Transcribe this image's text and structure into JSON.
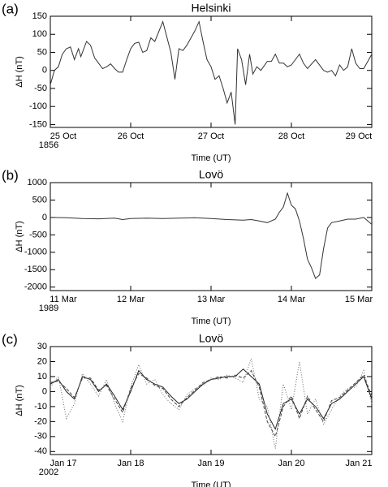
{
  "chart_data": [
    {
      "type": "line",
      "panel_label": "(a)",
      "title": "Helsinki",
      "x_label": "Time (UT)",
      "y_label": "ΔH (nT)",
      "year": "1856",
      "xlim": [
        0,
        4
      ],
      "xticks": [
        {
          "value": 0,
          "label": "25 Oct"
        },
        {
          "value": 1,
          "label": "26 Oct"
        },
        {
          "value": 2,
          "label": "27 Oct"
        },
        {
          "value": 3,
          "label": "28 Oct"
        },
        {
          "value": 4,
          "label": "29 Oct"
        }
      ],
      "ylim": [
        -158,
        150
      ],
      "yticks": [
        -150,
        -100,
        -50,
        0,
        50,
        100,
        150
      ],
      "x": [
        0,
        0.05,
        0.1,
        0.15,
        0.2,
        0.25,
        0.3,
        0.35,
        0.38,
        0.45,
        0.5,
        0.55,
        0.6,
        0.65,
        0.7,
        0.75,
        0.8,
        0.85,
        0.9,
        0.95,
        1.0,
        1.05,
        1.1,
        1.15,
        1.2,
        1.25,
        1.3,
        1.4,
        1.5,
        1.55,
        1.6,
        1.65,
        1.7,
        1.8,
        1.85,
        1.9,
        1.95,
        2.0,
        2.05,
        2.1,
        2.15,
        2.2,
        2.25,
        2.3,
        2.33,
        2.38,
        2.43,
        2.48,
        2.52,
        2.57,
        2.62,
        2.7,
        2.75,
        2.8,
        2.85,
        2.9,
        2.95,
        3.0,
        3.1,
        3.15,
        3.2,
        3.3,
        3.4,
        3.45,
        3.5,
        3.55,
        3.6,
        3.65,
        3.7,
        3.75,
        3.8,
        3.85,
        3.9,
        3.95,
        4.0
      ],
      "series": [
        {
          "color": "#333333",
          "dash": "solid",
          "values": [
            -40,
            0,
            10,
            45,
            60,
            65,
            30,
            60,
            38,
            80,
            70,
            35,
            20,
            5,
            10,
            18,
            5,
            -5,
            -5,
            30,
            60,
            75,
            78,
            50,
            55,
            90,
            80,
            135,
            50,
            -25,
            60,
            55,
            70,
            110,
            135,
            80,
            30,
            10,
            -25,
            -15,
            -50,
            -90,
            -60,
            -150,
            60,
            30,
            -40,
            45,
            -10,
            10,
            0,
            25,
            25,
            45,
            20,
            20,
            10,
            15,
            45,
            20,
            5,
            30,
            0,
            -5,
            0,
            -15,
            15,
            0,
            10,
            60,
            20,
            5,
            5,
            25,
            45
          ]
        }
      ]
    },
    {
      "type": "line",
      "panel_label": "(b)",
      "title": "Lovö",
      "x_label": "Time (UT)",
      "y_label": "ΔH (nT)",
      "year": "1989",
      "xlim": [
        0,
        4
      ],
      "xticks": [
        {
          "value": 0,
          "label": "11 Mar"
        },
        {
          "value": 1,
          "label": "12 Mar"
        },
        {
          "value": 2,
          "label": "13 Mar"
        },
        {
          "value": 3,
          "label": "14 Mar"
        },
        {
          "value": 4,
          "label": "15 Mar"
        }
      ],
      "ylim": [
        -2100,
        1000
      ],
      "yticks": [
        -2000,
        -1500,
        -1000,
        -500,
        0,
        500,
        1000
      ],
      "x": [
        0,
        0.2,
        0.4,
        0.6,
        0.8,
        0.9,
        1.0,
        1.2,
        1.4,
        1.6,
        1.8,
        2.0,
        2.2,
        2.4,
        2.5,
        2.6,
        2.7,
        2.8,
        2.85,
        2.9,
        2.95,
        3.0,
        3.05,
        3.1,
        3.15,
        3.2,
        3.25,
        3.3,
        3.35,
        3.4,
        3.45,
        3.5,
        3.6,
        3.7,
        3.8,
        3.9,
        4.0
      ],
      "series": [
        {
          "color": "#333333",
          "dash": "solid",
          "values": [
            0,
            -10,
            -30,
            -40,
            -20,
            -60,
            -30,
            -20,
            -30,
            -20,
            -10,
            -30,
            -60,
            -80,
            -60,
            -100,
            -150,
            -50,
            150,
            300,
            700,
            350,
            250,
            -100,
            -600,
            -1200,
            -1450,
            -1750,
            -1650,
            -900,
            -300,
            -150,
            -100,
            -50,
            -50,
            0,
            -200
          ]
        }
      ]
    },
    {
      "type": "line",
      "panel_label": "(c)",
      "title": "Lovö",
      "x_label": "Time (UT)",
      "y_label": "ΔH (nT)",
      "year": "2002",
      "xlim": [
        0,
        4
      ],
      "xticks": [
        {
          "value": 0,
          "label": "Jan 17"
        },
        {
          "value": 1,
          "label": "Jan 18"
        },
        {
          "value": 2,
          "label": "Jan 19"
        },
        {
          "value": 3,
          "label": "Jan 20"
        },
        {
          "value": 4,
          "label": "Jan 21"
        }
      ],
      "ylim": [
        -42,
        30
      ],
      "yticks": [
        -40,
        -30,
        -20,
        -10,
        0,
        10,
        20,
        30
      ],
      "x": [
        0,
        0.1,
        0.2,
        0.3,
        0.4,
        0.5,
        0.6,
        0.7,
        0.8,
        0.9,
        1.0,
        1.1,
        1.2,
        1.3,
        1.4,
        1.5,
        1.6,
        1.7,
        1.8,
        1.9,
        2.0,
        2.1,
        2.2,
        2.3,
        2.4,
        2.5,
        2.6,
        2.7,
        2.8,
        2.9,
        3.0,
        3.1,
        3.2,
        3.3,
        3.4,
        3.5,
        3.6,
        3.7,
        3.8,
        3.9,
        4.0
      ],
      "series": [
        {
          "color": "#222222",
          "dash": "solid",
          "values": [
            5,
            8,
            0,
            -5,
            10,
            8,
            0,
            5,
            -3,
            -12,
            0,
            14,
            8,
            5,
            3,
            -3,
            -8,
            -5,
            0,
            5,
            8,
            9,
            10,
            10,
            15,
            10,
            5,
            -15,
            -25,
            -8,
            -5,
            -15,
            -5,
            -10,
            -18,
            -8,
            -5,
            0,
            5,
            10,
            -5
          ]
        },
        {
          "color": "#444444",
          "dash": "dashed",
          "values": [
            6,
            7,
            2,
            -4,
            9,
            9,
            1,
            4,
            -5,
            -14,
            2,
            12,
            9,
            4,
            2,
            -5,
            -10,
            -4,
            1,
            6,
            8,
            10,
            9,
            11,
            9,
            14,
            3,
            -20,
            -30,
            -10,
            -3,
            -18,
            -3,
            -12,
            -20,
            -6,
            -4,
            1,
            6,
            11,
            -3
          ]
        },
        {
          "color": "#666666",
          "dash": "dotted",
          "values": [
            3,
            10,
            -18,
            -8,
            12,
            5,
            -3,
            8,
            -8,
            -20,
            3,
            18,
            5,
            8,
            -2,
            -8,
            -12,
            -2,
            2,
            4,
            9,
            8,
            11,
            9,
            6,
            22,
            -5,
            -10,
            -38,
            5,
            -12,
            20,
            -15,
            -5,
            -22,
            -12,
            -3,
            2,
            3,
            14,
            -8
          ]
        }
      ]
    }
  ]
}
